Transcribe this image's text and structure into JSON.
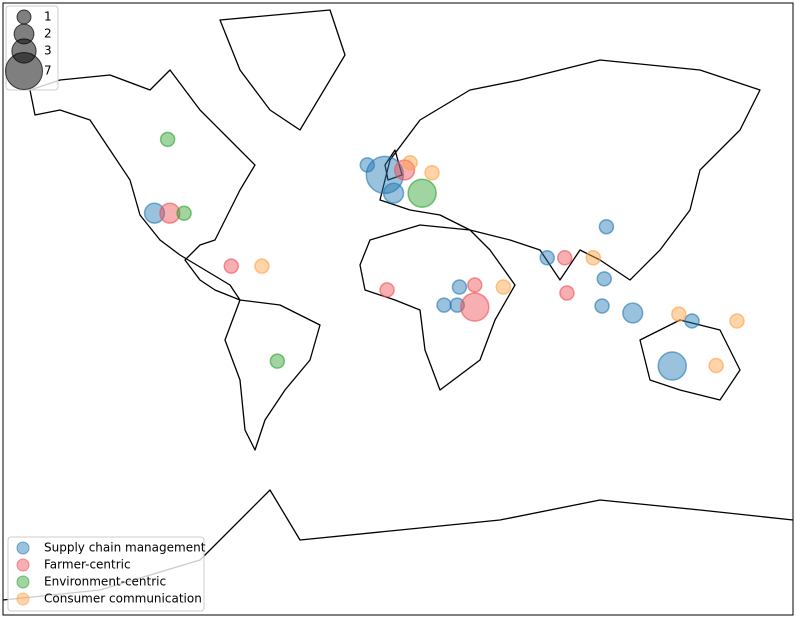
{
  "chart_data": {
    "type": "bubble-map",
    "size_legend": [
      1,
      2,
      3,
      7
    ],
    "series": [
      {
        "name": "Supply chain management",
        "color": "#1f77b4",
        "lon": [
          -14,
          -6,
          -2,
          -111,
          95,
          68,
          94,
          93,
          107,
          28,
          21,
          27,
          134,
          125
        ],
        "lat": [
          53.4,
          50.6,
          45,
          38.2,
          33.2,
          20.6,
          11.4,
          -0.9,
          -4.1,
          7.7,
          -0.5,
          -0.5,
          -7.7,
          -27.2
        ],
        "sizes": [
          1,
          7,
          2,
          2,
          1,
          1,
          1,
          1,
          2,
          1,
          1,
          1,
          1,
          4
        ]
      },
      {
        "name": "Farmer-centric",
        "color": "#ef4d55",
        "lon": [
          -104,
          -76,
          -5,
          35,
          35,
          76,
          77,
          3
        ],
        "lat": [
          38.2,
          17,
          6.4,
          8.6,
          -1.4,
          20.6,
          5,
          52
        ],
        "sizes": [
          2,
          1,
          1,
          1,
          4,
          1,
          1,
          2
        ]
      },
      {
        "name": "Environment-centric",
        "color": "#2ca02c",
        "lon": [
          -105,
          -97.5,
          11,
          -55
        ],
        "lat": [
          59.8,
          38.2,
          45,
          -25.2
        ],
        "sizes": [
          1,
          1,
          4,
          1
        ]
      },
      {
        "name": "Consumer communication",
        "color": "#ff9f40",
        "lon": [
          -62,
          5.5,
          15.5,
          48,
          89,
          128,
          154.5,
          145
        ],
        "lat": [
          17,
          54,
          51.2,
          7.7,
          20.6,
          -4.6,
          -7.7,
          -27
        ],
        "sizes": [
          1,
          1,
          1,
          1,
          1,
          1,
          1,
          1
        ]
      }
    ]
  }
}
